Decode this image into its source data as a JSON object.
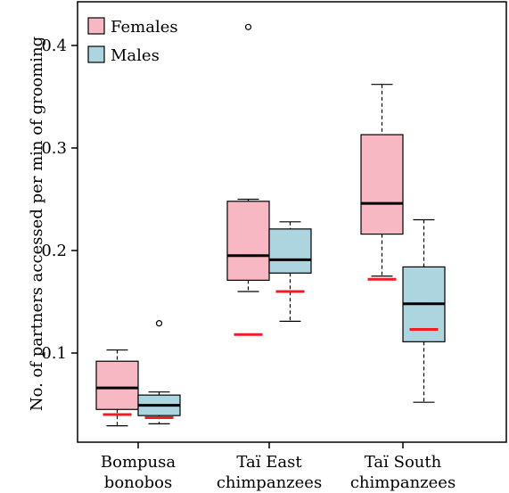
{
  "chart_data": {
    "type": "boxplot",
    "title": "",
    "xlabel": "",
    "ylabel": "No. of partners accessed per min of grooming",
    "ylim": [
      0.015,
      0.44
    ],
    "yticks": [
      0.1,
      0.2,
      0.3,
      0.4
    ],
    "ytick_labels": [
      "0.1",
      "0.2",
      "0.3",
      "0.4"
    ],
    "categories": [
      [
        "Bompusa",
        "bonobos"
      ],
      [
        "Taï East",
        "chimpanzees"
      ],
      [
        "Taï South",
        "chimpanzees"
      ]
    ],
    "legend": {
      "placement": "top-left"
    },
    "series": [
      {
        "name": "Females",
        "color": "#f7b8c4",
        "boxes": [
          {
            "whisker_low": 0.029,
            "q1": 0.045,
            "median": 0.066,
            "q3": 0.092,
            "whisker_high": 0.103,
            "outliers": [],
            "expected": 0.04
          },
          {
            "whisker_low": 0.16,
            "q1": 0.171,
            "median": 0.195,
            "q3": 0.248,
            "whisker_high": 0.25,
            "outliers": [
              0.418
            ],
            "expected": 0.118
          },
          {
            "whisker_low": 0.175,
            "q1": 0.216,
            "median": 0.246,
            "q3": 0.313,
            "whisker_high": 0.362,
            "outliers": [],
            "expected": 0.172
          }
        ]
      },
      {
        "name": "Males",
        "color": "#acd5e0",
        "boxes": [
          {
            "whisker_low": 0.031,
            "q1": 0.039,
            "median": 0.049,
            "q3": 0.059,
            "whisker_high": 0.062,
            "outliers": [
              0.129
            ],
            "expected": 0.037
          },
          {
            "whisker_low": 0.131,
            "q1": 0.178,
            "median": 0.191,
            "q3": 0.221,
            "whisker_high": 0.228,
            "outliers": [],
            "expected": 0.16
          },
          {
            "whisker_low": 0.052,
            "q1": 0.111,
            "median": 0.148,
            "q3": 0.184,
            "whisker_high": 0.23,
            "outliers": [],
            "expected": 0.123
          }
        ]
      }
    ],
    "expected_marker_color": "#ee1c25"
  }
}
